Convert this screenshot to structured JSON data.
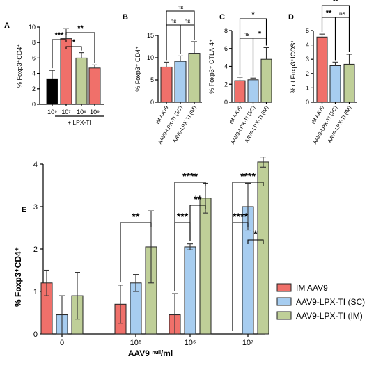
{
  "colors": {
    "black": "#000000",
    "red": "#f0706a",
    "blue": "#a7cdf0",
    "green": "#bfcf98",
    "stroke": "#222222"
  },
  "chart_data": [
    {
      "panel": "A",
      "type": "bar",
      "ylabel": "% Foxp3⁺CD4⁺",
      "ylim": [
        0,
        10
      ],
      "yticks": [
        "0",
        "2",
        "4",
        "6",
        "8",
        "10"
      ],
      "categories": [
        "10⁹",
        "10⁷",
        "10⁸",
        "10⁹"
      ],
      "group_label": "+ LPX-TI",
      "values": [
        3.3,
        8.5,
        6.0,
        4.7
      ],
      "errors": [
        1.1,
        1.3,
        0.7,
        0.4
      ],
      "colors": [
        "black",
        "red",
        "green",
        "red"
      ],
      "brackets": [
        {
          "from": 0,
          "to": 1,
          "label": "***"
        },
        {
          "from": 1,
          "to": 2,
          "label": "*"
        },
        {
          "from": 1,
          "to": 3,
          "label": "**"
        }
      ]
    },
    {
      "panel": "B",
      "type": "bar",
      "ylabel": "% Foxp3⁺ CD4⁺",
      "ylim": [
        0,
        15
      ],
      "yticks": [
        "0",
        "5",
        "10",
        "15"
      ],
      "categories": [
        "IM AAV9",
        "AAV9-LPX-TI (SC)",
        "AAV9-LPX-TI (IM)"
      ],
      "values": [
        7.9,
        9.2,
        11.0
      ],
      "errors": [
        1.1,
        1.2,
        2.6
      ],
      "colors": [
        "red",
        "blue",
        "green"
      ],
      "brackets": [
        {
          "from": 0,
          "to": 1,
          "label": "ns"
        },
        {
          "from": 1,
          "to": 2,
          "label": "ns"
        },
        {
          "from": 0,
          "to": 2,
          "label": "ns"
        }
      ]
    },
    {
      "panel": "C",
      "type": "bar",
      "ylabel": "% Foxp3⁺ CTLA-4⁺",
      "ylim": [
        0,
        8
      ],
      "yticks": [
        "0",
        "2",
        "4",
        "6",
        "8"
      ],
      "categories": [
        "IM AAV9",
        "AAV9-LPX-TI (SC)",
        "AAV9-LPX-TI (IM)"
      ],
      "values": [
        2.4,
        2.5,
        4.8
      ],
      "errors": [
        0.4,
        0.2,
        1.3
      ],
      "colors": [
        "red",
        "blue",
        "green"
      ],
      "brackets": [
        {
          "from": 0,
          "to": 1,
          "label": "ns"
        },
        {
          "from": 1,
          "to": 2,
          "label": "*"
        },
        {
          "from": 0,
          "to": 2,
          "label": "*"
        }
      ]
    },
    {
      "panel": "D",
      "type": "bar",
      "ylabel": "% of Foxp3⁺ICOS⁺",
      "ylim": [
        0,
        5
      ],
      "yticks": [
        "0",
        "1",
        "2",
        "3",
        "4",
        "5"
      ],
      "categories": [
        "IM AAV9",
        "AAV9-LPX-TI (SC)",
        "AAV9-LPX-TI (IM)"
      ],
      "values": [
        4.55,
        2.55,
        2.65
      ],
      "errors": [
        0.2,
        0.25,
        0.7
      ],
      "colors": [
        "red",
        "blue",
        "green"
      ],
      "brackets": [
        {
          "from": 0,
          "to": 1,
          "label": "**"
        },
        {
          "from": 1,
          "to": 2,
          "label": "ns"
        },
        {
          "from": 0,
          "to": 2,
          "label": "**"
        }
      ]
    },
    {
      "panel": "E",
      "type": "bar",
      "ylabel": "% Foxp3⁺CD4⁺",
      "xlabel": "AAV9 ⁿᵘˡˡ/ml",
      "ylim": [
        0,
        4
      ],
      "yticks": [
        "0",
        "1",
        "2",
        "3",
        "4"
      ],
      "categories": [
        "0",
        "10⁵",
        "10⁶",
        "10⁷"
      ],
      "series": [
        {
          "name": "IM AAV9",
          "color": "red",
          "values": [
            1.2,
            0.7,
            0.45,
            0.0
          ],
          "errors": [
            0.3,
            0.45,
            0.5,
            0.0
          ]
        },
        {
          "name": "AAV9-LPX-TI (SC)",
          "color": "blue",
          "values": [
            0.45,
            1.2,
            2.05,
            3.0
          ],
          "errors": [
            0.45,
            0.2,
            0.07,
            0.55
          ]
        },
        {
          "name": "AAV9-LPX-TI (IM)",
          "color": "green",
          "values": [
            0.9,
            2.05,
            3.2,
            4.05
          ],
          "errors": [
            0.55,
            0.85,
            0.35,
            0.12
          ]
        }
      ],
      "brackets": [
        {
          "group": 1,
          "from": 0,
          "to": 2,
          "label": "**"
        },
        {
          "group": 2,
          "from": 0,
          "to": 1,
          "label": "***"
        },
        {
          "group": 2,
          "from": 1,
          "to": 2,
          "label": "**"
        },
        {
          "group": 2,
          "from": 0,
          "to": 2,
          "label": "****"
        },
        {
          "group": 3,
          "from": 0,
          "to": 1,
          "label": "****"
        },
        {
          "group": 3,
          "from": 1,
          "to": 2,
          "label": "*"
        },
        {
          "group": 3,
          "from": 0,
          "to": 2,
          "label": "****"
        }
      ],
      "legend_position": "right"
    }
  ]
}
